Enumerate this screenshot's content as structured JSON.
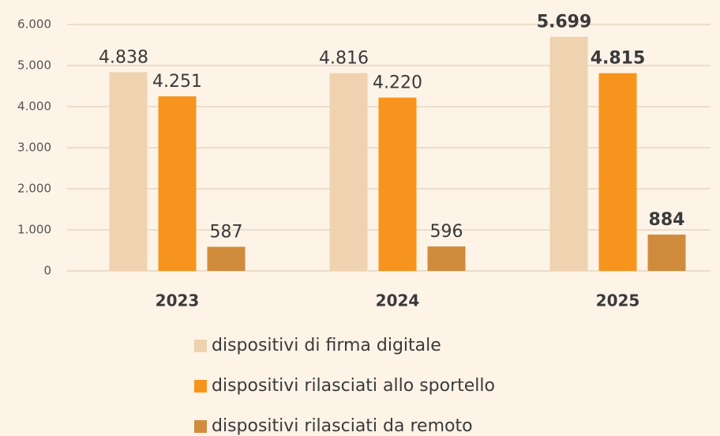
{
  "chart_data": {
    "type": "bar",
    "categories": [
      "2023",
      "2024",
      "2025"
    ],
    "series": [
      {
        "name": "dispositivi di firma digitale",
        "color": "#efd2b0",
        "values": [
          4838,
          4816,
          5699
        ],
        "value_labels": [
          "4.838",
          "4.816",
          "5.699"
        ]
      },
      {
        "name": "dispositivi rilasciati allo sportello",
        "color": "#f7941d",
        "values": [
          4251,
          4220,
          4815
        ],
        "value_labels": [
          "4.251",
          "4.220",
          "4.815"
        ]
      },
      {
        "name": "dispositivi rilasciati da remoto",
        "color": "#d08c3c",
        "values": [
          587,
          596,
          884
        ],
        "value_labels": [
          "587",
          "596",
          "884"
        ]
      }
    ],
    "ylim": [
      0,
      6000
    ],
    "yticks": [
      0,
      {
        "value": 1000,
        "label": "1.000"
      },
      {
        "value": 2000,
        "label": "2.000"
      },
      {
        "value": 3000,
        "label": "3.000"
      },
      {
        "value": 4000,
        "label": "4.000"
      },
      {
        "value": 5000,
        "label": "5.000"
      },
      {
        "value": 6000,
        "label": "6.000"
      }
    ],
    "grid": true,
    "legend": "bottom"
  }
}
